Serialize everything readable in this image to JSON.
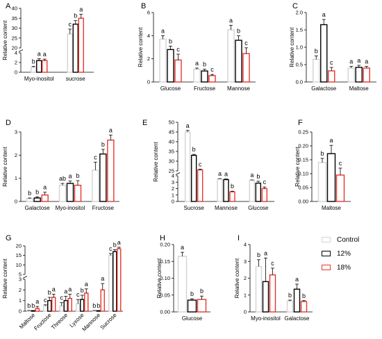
{
  "legend": {
    "series": [
      {
        "name": "Control",
        "color": "#d3d3d3"
      },
      {
        "name": "12%",
        "color": "#000000"
      },
      {
        "name": "18%",
        "color": "#e8352b"
      }
    ]
  },
  "ylabel": "Relative content",
  "chart_data": [
    {
      "panel": "A",
      "type": "bar",
      "broken_axis": true,
      "categories": [
        "Myo-inositol",
        "sucrose"
      ],
      "yticks": [
        0,
        2,
        4,
        20,
        25,
        30,
        35,
        40
      ],
      "series": [
        {
          "name": "Control",
          "values": [
            1.0,
            27
          ],
          "errors": [
            0.2,
            2.5
          ],
          "letters": [
            "b",
            "c"
          ]
        },
        {
          "name": "12%",
          "values": [
            2.4,
            32
          ],
          "errors": [
            0.4,
            1.8
          ],
          "letters": [
            "a",
            "b"
          ]
        },
        {
          "name": "18%",
          "values": [
            2.4,
            35
          ],
          "errors": [
            0.3,
            2.0
          ],
          "letters": [
            "a",
            "a"
          ]
        }
      ]
    },
    {
      "panel": "B",
      "type": "bar",
      "categories": [
        "Glucose",
        "Fructose",
        "Mannose"
      ],
      "ylim": [
        0,
        6
      ],
      "yticks": [
        0,
        2,
        4,
        6
      ],
      "series": [
        {
          "name": "Control",
          "values": [
            3.7,
            1.1,
            4.5
          ],
          "errors": [
            0.3,
            0.1,
            0.4
          ],
          "letters": [
            "a",
            "a",
            "a"
          ]
        },
        {
          "name": "12%",
          "values": [
            2.8,
            0.95,
            3.6
          ],
          "errors": [
            0.3,
            0.15,
            0.4
          ],
          "letters": [
            "b",
            "b",
            "b"
          ]
        },
        {
          "name": "18%",
          "values": [
            1.9,
            0.55,
            2.45
          ],
          "errors": [
            0.5,
            0.1,
            0.5
          ],
          "letters": [
            "c",
            "c",
            "c"
          ]
        }
      ]
    },
    {
      "panel": "C",
      "type": "bar",
      "categories": [
        "Galactose",
        "Maltose"
      ],
      "ylim": [
        0,
        2.0
      ],
      "yticks": [
        0.0,
        0.5,
        1.0,
        1.5,
        2.0
      ],
      "series": [
        {
          "name": "Control",
          "values": [
            0.65,
            0.4
          ],
          "errors": [
            0.1,
            0.05
          ],
          "letters": [
            "b",
            "a"
          ]
        },
        {
          "name": "12%",
          "values": [
            1.65,
            0.42
          ],
          "errors": [
            0.15,
            0.06
          ],
          "letters": [
            "a",
            "a"
          ]
        },
        {
          "name": "18%",
          "values": [
            0.32,
            0.4
          ],
          "errors": [
            0.1,
            0.05
          ],
          "letters": [
            "c",
            "a"
          ]
        }
      ]
    },
    {
      "panel": "D",
      "type": "bar",
      "categories": [
        "Galactose",
        "Myo-inositol",
        "Fructose"
      ],
      "ylim": [
        0,
        3
      ],
      "yticks": [
        0,
        1,
        2,
        3
      ],
      "series": [
        {
          "name": "Control",
          "values": [
            0.12,
            0.7,
            1.35
          ],
          "errors": [
            0.03,
            0.08,
            0.35
          ],
          "letters": [
            "b",
            "ab",
            "c"
          ]
        },
        {
          "name": "12%",
          "values": [
            0.15,
            0.78,
            2.05
          ],
          "errors": [
            0.05,
            0.1,
            0.2
          ],
          "letters": [
            "b",
            "a",
            "b"
          ]
        },
        {
          "name": "18%",
          "values": [
            0.28,
            0.7,
            2.65
          ],
          "errors": [
            0.12,
            0.2,
            0.22
          ],
          "letters": [
            "a",
            "b",
            "a"
          ]
        }
      ]
    },
    {
      "panel": "E",
      "type": "bar",
      "broken_axis": true,
      "categories": [
        "Sucrose",
        "Mannose",
        "Glucose"
      ],
      "yticks": [
        0,
        1,
        2,
        3,
        4,
        25,
        30,
        35,
        40,
        45,
        50
      ],
      "series": [
        {
          "name": "Control",
          "values": [
            45,
            3.5,
            3.3
          ],
          "errors": [
            0.8,
            0.05,
            0.05
          ],
          "letters": [
            "a",
            "a",
            "a"
          ]
        },
        {
          "name": "12%",
          "values": [
            33,
            3.4,
            2.85
          ],
          "errors": [
            0.5,
            0.1,
            0.3
          ],
          "letters": [
            "b",
            "a",
            "b"
          ]
        },
        {
          "name": "18%",
          "values": [
            25.5,
            1.5,
            2.0
          ],
          "errors": [
            0.4,
            0.1,
            0.25
          ],
          "letters": [
            "c",
            "b",
            "c"
          ]
        }
      ]
    },
    {
      "panel": "F",
      "type": "bar",
      "categories": [
        "Maltose"
      ],
      "ylim": [
        0,
        0.25
      ],
      "yticks": [
        0.0,
        0.05,
        0.1,
        0.15,
        0.2,
        0.25
      ],
      "series": [
        {
          "name": "Control",
          "values": [
            0.14
          ],
          "errors": [
            0.015
          ],
          "letters": [
            "b"
          ]
        },
        {
          "name": "12%",
          "values": [
            0.172
          ],
          "errors": [
            0.03
          ],
          "letters": [
            "a"
          ]
        },
        {
          "name": "18%",
          "values": [
            0.095
          ],
          "errors": [
            0.025
          ],
          "letters": [
            "c"
          ]
        }
      ]
    },
    {
      "panel": "G",
      "type": "bar",
      "broken_axis": true,
      "categories": [
        "Maltose",
        "Fructose",
        "Threose",
        "Lyxose",
        "Mannose",
        "Sucrose"
      ],
      "yticks": [
        0,
        1,
        2,
        3,
        5,
        10,
        15,
        20
      ],
      "series": [
        {
          "name": "Control",
          "values": [
            0.05,
            0.5,
            0.5,
            0.7,
            0.05,
            15
          ],
          "errors": [
            0.02,
            0.1,
            0.3,
            0.4,
            0.02,
            1
          ],
          "letters": [
            "b",
            "c",
            "c",
            "c",
            "b",
            "c"
          ]
        },
        {
          "name": "12%",
          "values": [
            0.05,
            1.0,
            1.0,
            1.1,
            0.05,
            17
          ],
          "errors": [
            0.02,
            0.3,
            0.4,
            0.4,
            0.02,
            1
          ],
          "letters": [
            "b",
            "b",
            "a",
            "b",
            "b",
            "b"
          ]
        },
        {
          "name": "18%",
          "values": [
            0.25,
            1.3,
            1.2,
            1.7,
            2.0,
            18.5
          ],
          "errors": [
            0.2,
            0.3,
            0.4,
            0.4,
            0.6,
            0.8
          ],
          "letters": [
            "a",
            "a",
            "a",
            "a",
            "a",
            "a"
          ]
        }
      ]
    },
    {
      "panel": "H",
      "type": "bar",
      "categories": [
        "Glucose"
      ],
      "ylim": [
        0,
        0.2
      ],
      "yticks": [
        0.0,
        0.05,
        0.1,
        0.15,
        0.2
      ],
      "series": [
        {
          "name": "Control",
          "values": [
            0.165
          ],
          "errors": [
            0.012
          ],
          "letters": [
            "a"
          ]
        },
        {
          "name": "12%",
          "values": [
            0.035
          ],
          "errors": [
            0.004
          ],
          "letters": [
            "b"
          ]
        },
        {
          "name": "18%",
          "values": [
            0.037
          ],
          "errors": [
            0.01
          ],
          "letters": [
            "b"
          ]
        }
      ]
    },
    {
      "panel": "I",
      "type": "bar",
      "categories": [
        "Myo-inositol",
        "Galactose"
      ],
      "ylim": [
        0,
        4
      ],
      "yticks": [
        0,
        1,
        2,
        3,
        4
      ],
      "series": [
        {
          "name": "Control",
          "values": [
            2.7,
            0.65
          ],
          "errors": [
            0.4,
            0.05
          ],
          "letters": [
            "b",
            "b"
          ]
        },
        {
          "name": "12%",
          "values": [
            1.8,
            1.35
          ],
          "errors": [
            1.4,
            0.3
          ],
          "letters": [
            "a",
            "a"
          ]
        },
        {
          "name": "18%",
          "values": [
            2.2,
            0.62
          ],
          "errors": [
            0.4,
            0.05
          ],
          "letters": [
            "c",
            "b"
          ]
        }
      ]
    }
  ]
}
